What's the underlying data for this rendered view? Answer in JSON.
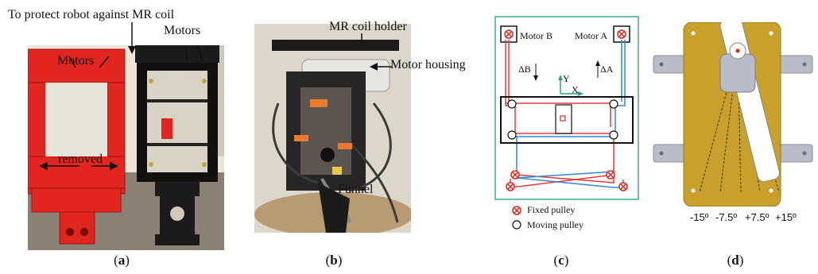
{
  "panel_a": {
    "label_top": "To protect robot against MR coil",
    "label_motors_right": "Motors",
    "label_motors_left": "Motors",
    "label_removed": "removed",
    "caption_letter": "a"
  },
  "panel_b": {
    "label_holder": "MR coil holder",
    "label_housing": "Motor housing",
    "label_funnel": "Funnel",
    "caption_letter": "b"
  },
  "panel_c": {
    "motor_b": "Motor B",
    "motor_a": "Motor A",
    "delta_b": "ΔB",
    "delta_a": "ΔA",
    "axis_y": "Y",
    "axis_x": "X",
    "legend_fixed": "Fixed pulley",
    "legend_moving": "Moving pulley",
    "caption_letter": "c"
  },
  "panel_d": {
    "angles": [
      "-15º",
      "-7.5º",
      "+7.5º",
      "+15º"
    ],
    "caption_letter": "d"
  },
  "colors": {
    "red_frame": "#e0261f",
    "black_frame": "#1a1a1a",
    "bg_photo_a": "#d8d2c8",
    "cable_red": "#e83a3a",
    "cable_blue": "#2f8ad6",
    "gold_plate": "#c9a02c",
    "grey_bar": "#b9bcc8",
    "teal_border": "#3fae8d"
  }
}
